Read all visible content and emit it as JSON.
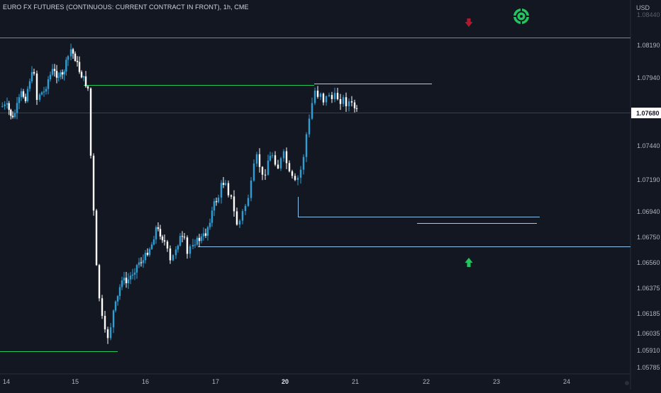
{
  "header": {
    "title": "EURO FX FUTURES (CONTINUOUS: CURRENT CONTRACT IN FRONT), 1h, CME",
    "currency": "USD"
  },
  "price_axis": {
    "labels": [
      "1.08190",
      "1.07940",
      "1.07440",
      "1.07190",
      "1.06940",
      "1.06750",
      "1.06560",
      "1.06375",
      "1.06185",
      "1.06035",
      "1.05910",
      "1.05785"
    ],
    "top_partial": "1.08440",
    "current_price": "1.07680"
  },
  "time_axis": {
    "labels": [
      "14",
      "15",
      "16",
      "17",
      "20",
      "21",
      "22",
      "23",
      "24"
    ],
    "highlighted": "20"
  },
  "colors": {
    "background": "#131722",
    "up_candle": "#2e9fd6",
    "down_candle": "#ffffff",
    "resistance_line": "#7b78d4",
    "green_line": "#22c55e",
    "gray_line": "#c0c4cc",
    "blue_line": "#8fc0e8",
    "yellow_line": "#e3c84a",
    "arrow_up": "#22c55e",
    "arrow_down": "#b11a2e",
    "target_icon": "#22c55e"
  },
  "icons": {
    "down_arrow": "arrow-down-icon",
    "up_arrow": "arrow-up-icon",
    "target": "crosshair-target-icon"
  }
}
